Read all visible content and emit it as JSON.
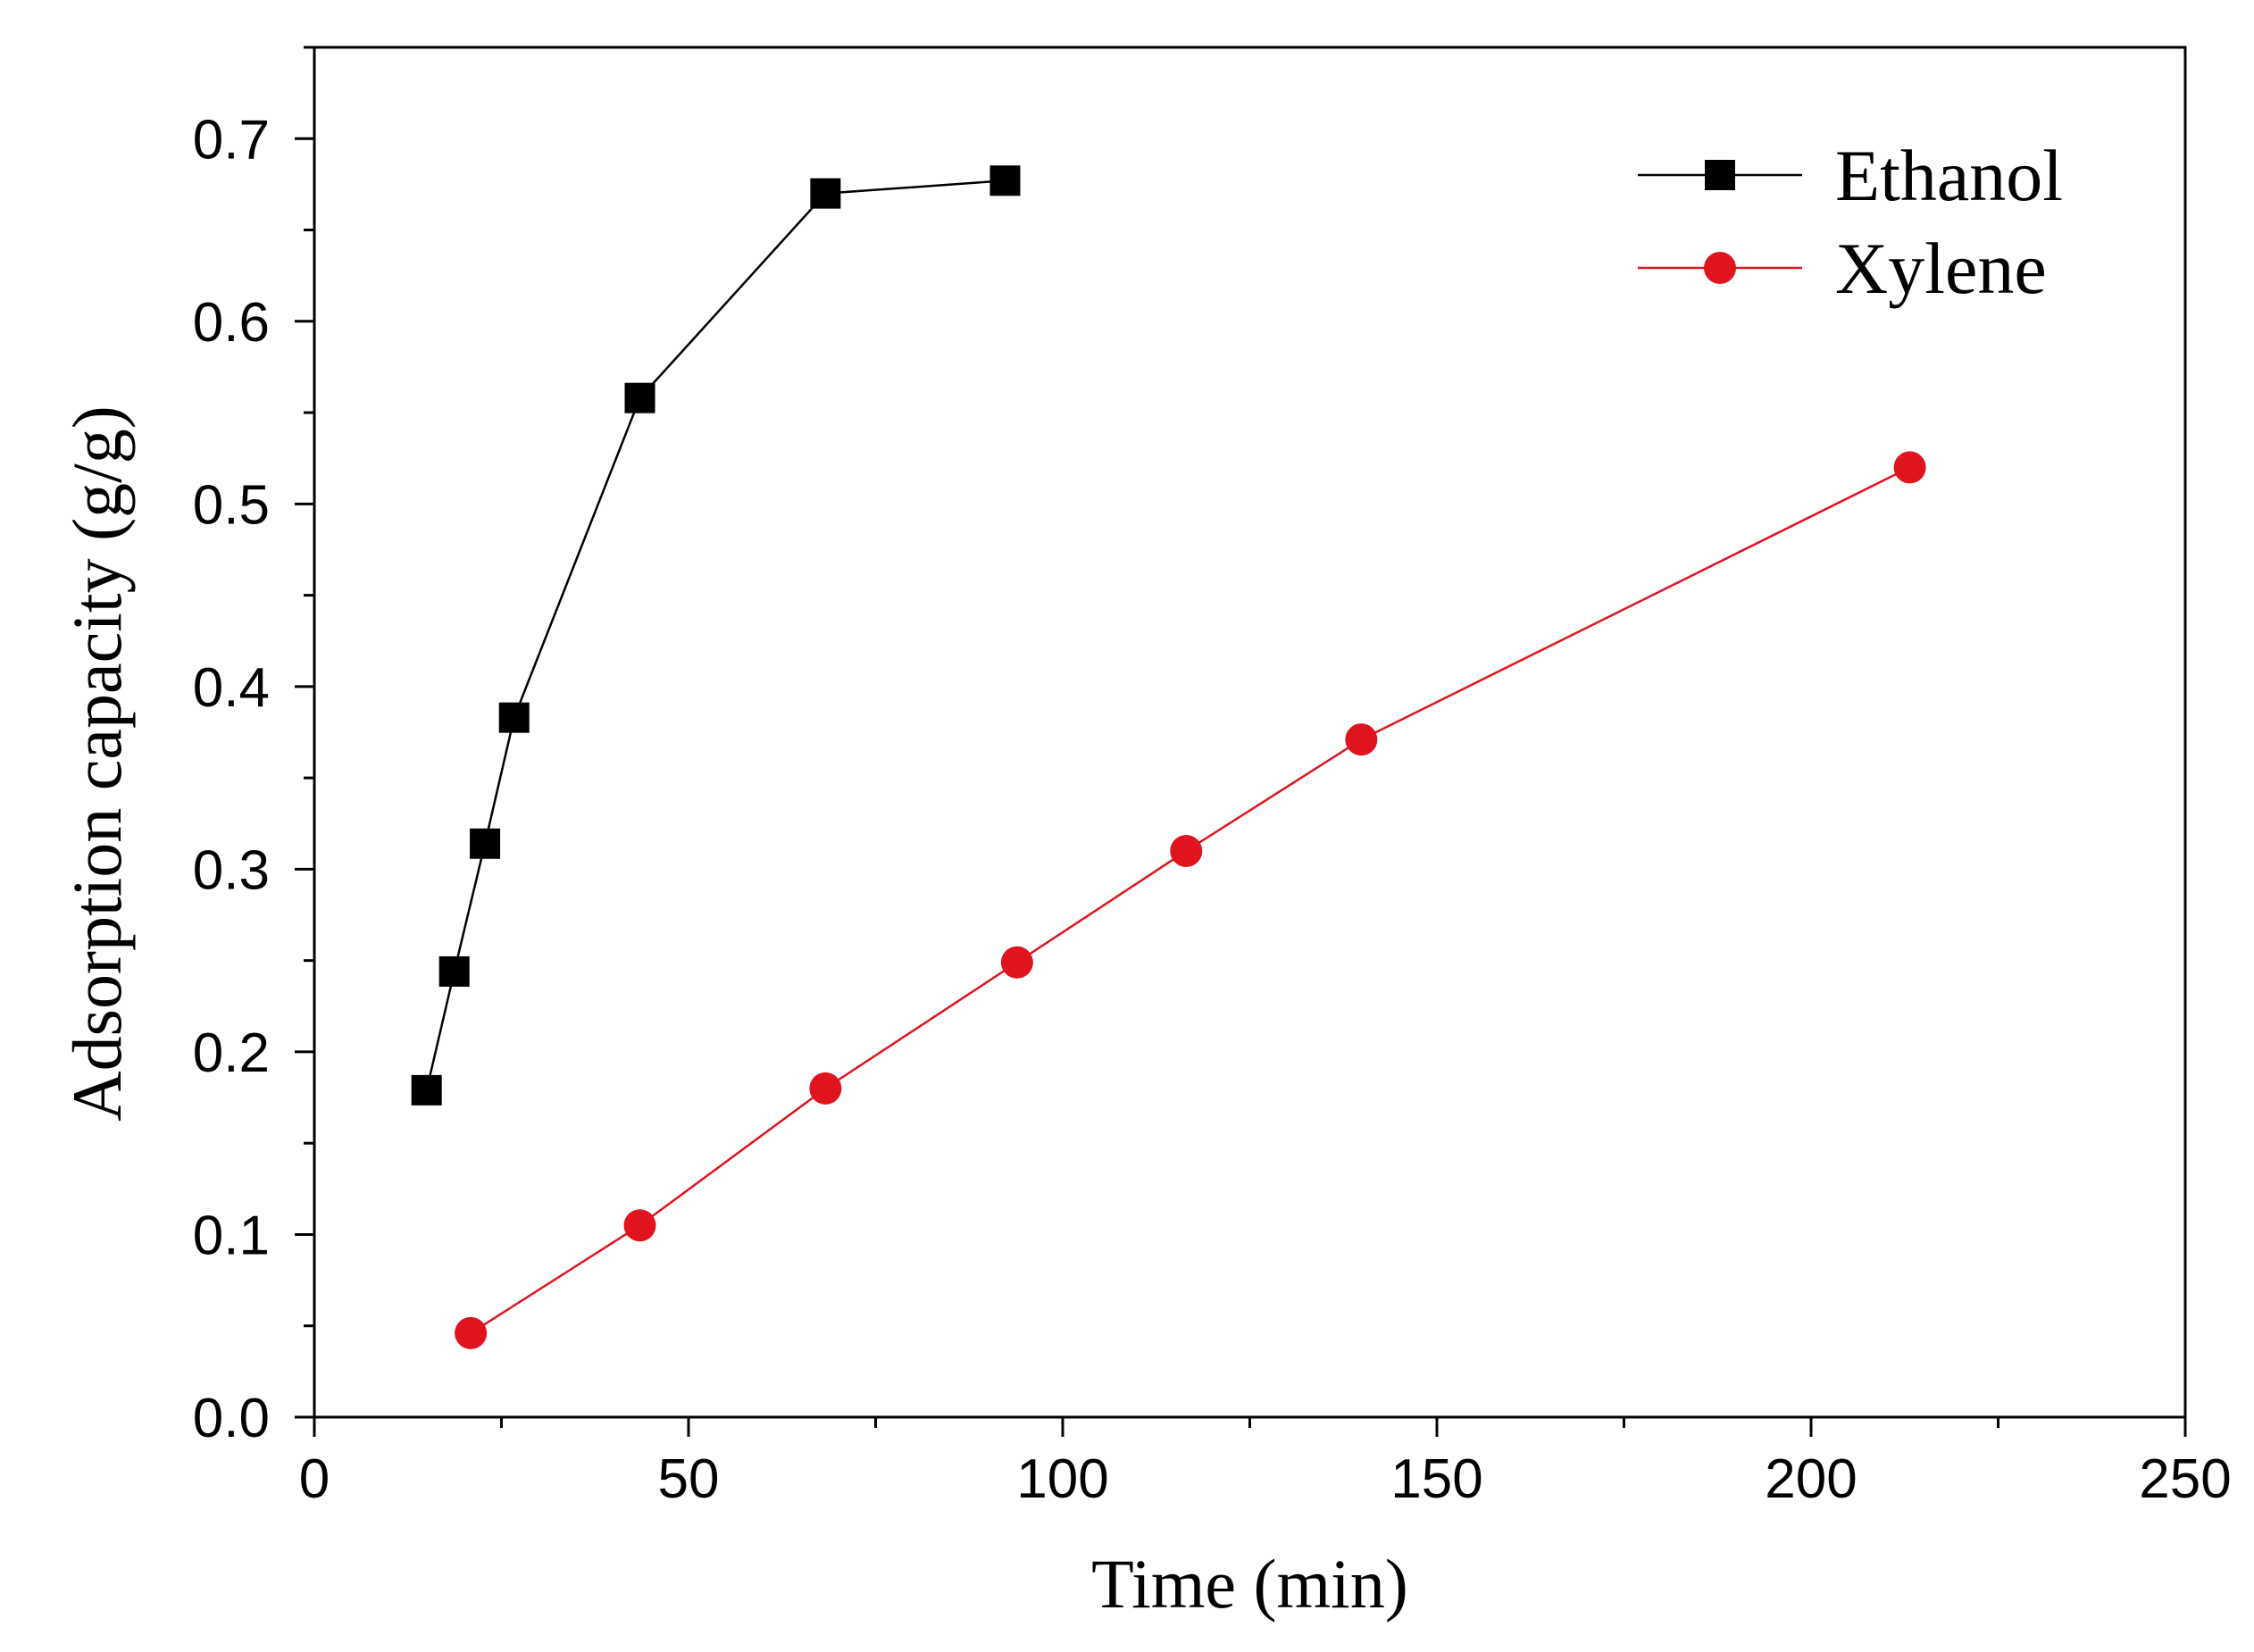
{
  "chart_data": {
    "type": "line",
    "title": "",
    "xlabel": "Time (min)",
    "ylabel": "Adsorption capacity (g/g)",
    "xlim": [
      0,
      250
    ],
    "ylim": [
      0,
      0.75
    ],
    "xticks": [
      0,
      50,
      100,
      150,
      200,
      250
    ],
    "xtick_labels": [
      "0",
      "50",
      "100",
      "150",
      "200",
      "250"
    ],
    "yticks": [
      0.0,
      0.1,
      0.2,
      0.3,
      0.4,
      0.5,
      0.6,
      0.7
    ],
    "ytick_labels": [
      "0.0",
      "0.1",
      "0.2",
      "0.3",
      "0.4",
      "0.5",
      "0.6",
      "0.7"
    ],
    "grid": false,
    "legend_position": "top-right",
    "series": [
      {
        "name": "Ethanol",
        "color": "#000000",
        "marker": "square",
        "x": [
          15,
          18.7,
          22.8,
          26.7,
          43.5,
          68.3,
          92.3
        ],
        "y": [
          0.179,
          0.244,
          0.314,
          0.383,
          0.558,
          0.67,
          0.677
        ]
      },
      {
        "name": "Xylene",
        "color": "#e0141e",
        "marker": "circle",
        "x": [
          20.9,
          43.5,
          68.3,
          93.9,
          116.5,
          139.9,
          213.2
        ],
        "y": [
          0.046,
          0.105,
          0.18,
          0.249,
          0.31,
          0.371,
          0.52
        ]
      }
    ]
  }
}
